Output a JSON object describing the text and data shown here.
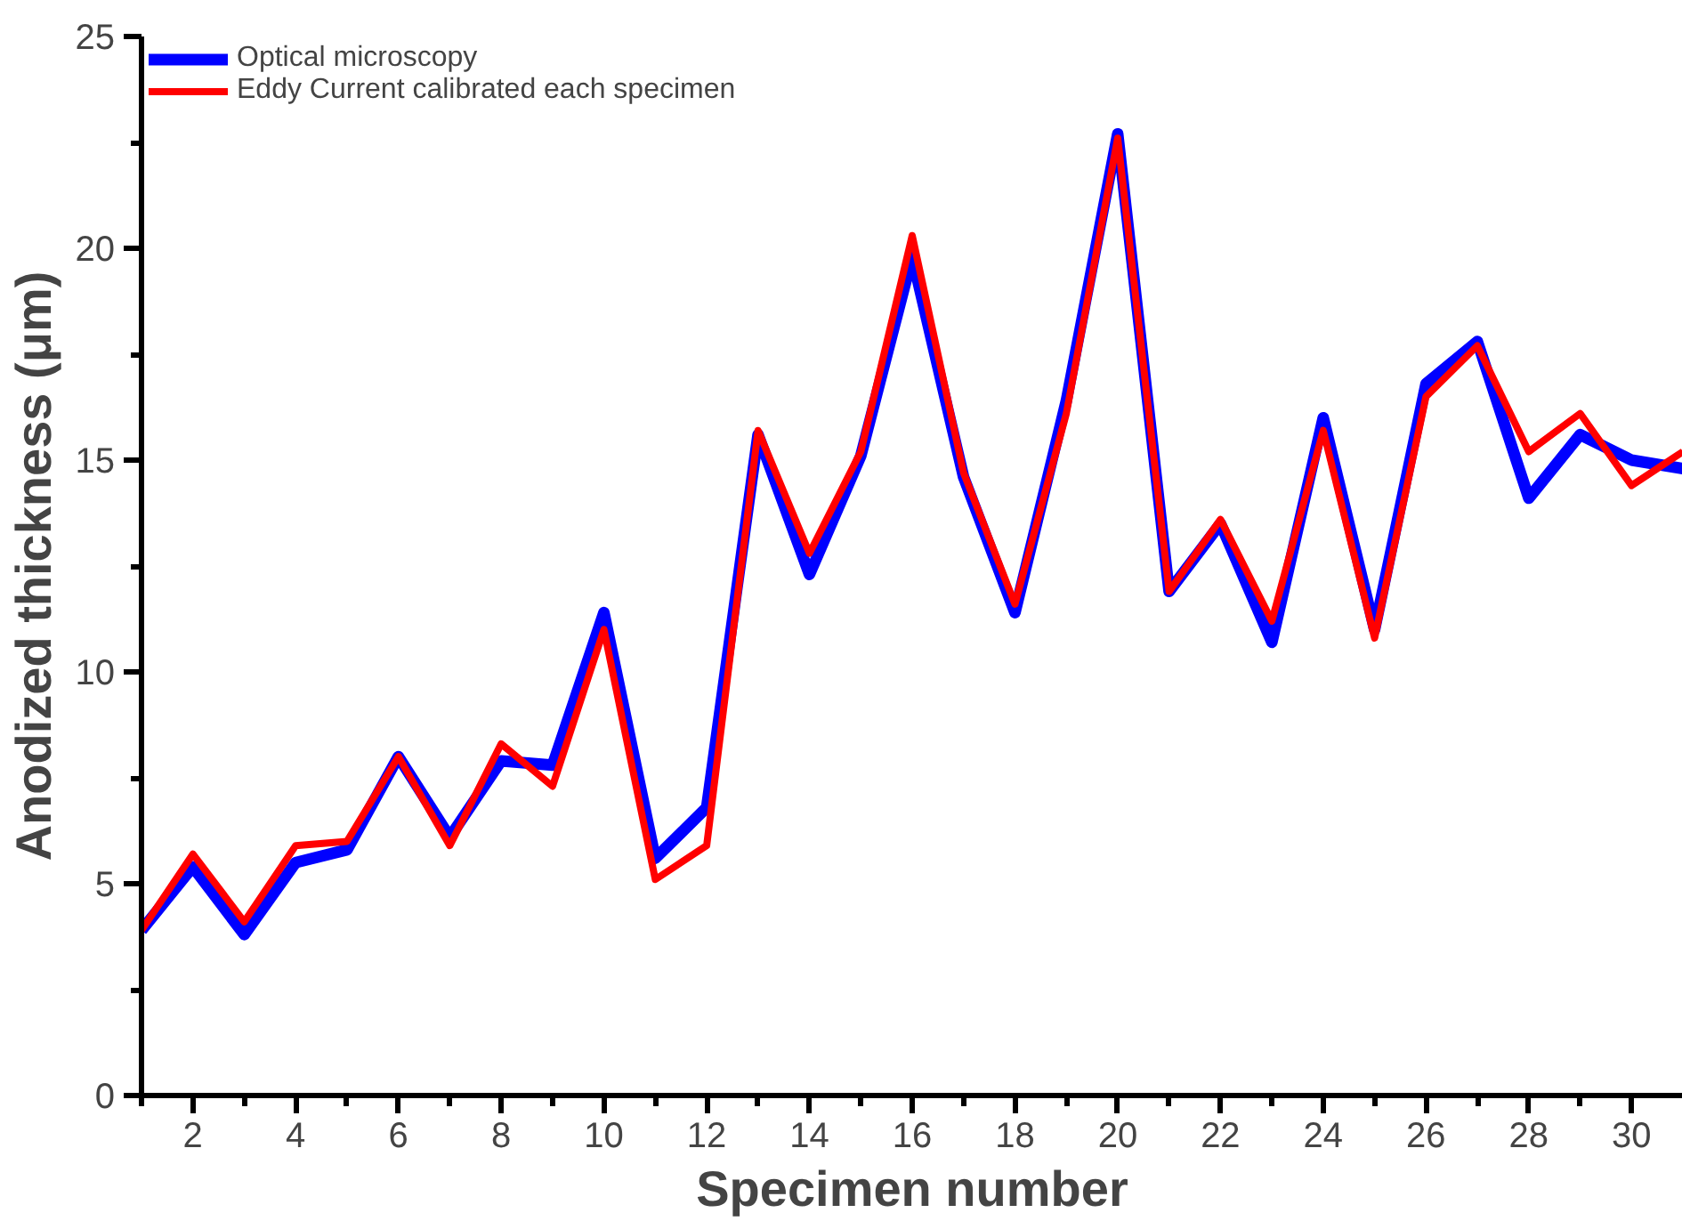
{
  "chart_data": {
    "type": "line",
    "xlabel": "Specimen number",
    "ylabel": "Anodized thickness (μm)",
    "x": [
      1,
      2,
      3,
      4,
      5,
      6,
      7,
      8,
      9,
      10,
      11,
      12,
      13,
      14,
      15,
      16,
      17,
      18,
      19,
      20,
      21,
      22,
      23,
      24,
      25,
      26,
      27,
      28,
      29,
      30,
      31
    ],
    "series": [
      {
        "name": "Optical microscopy",
        "color": "#0000ff",
        "values": [
          3.9,
          5.4,
          3.8,
          5.5,
          5.8,
          8.0,
          6.1,
          7.9,
          7.8,
          11.4,
          5.6,
          6.8,
          15.6,
          12.3,
          15.1,
          19.8,
          14.6,
          11.4,
          16.4,
          22.7,
          11.9,
          13.5,
          10.7,
          16.0,
          11.0,
          16.8,
          17.8,
          14.1,
          15.6,
          15.0,
          14.8
        ]
      },
      {
        "name": "Eddy Current calibrated each specimen",
        "color": "#ff0000",
        "values": [
          3.9,
          5.7,
          4.1,
          5.9,
          6.0,
          8.0,
          5.9,
          8.3,
          7.3,
          11.0,
          5.1,
          5.9,
          15.7,
          12.8,
          15.2,
          20.3,
          14.7,
          11.6,
          16.1,
          22.6,
          11.9,
          13.6,
          11.2,
          15.7,
          10.8,
          16.5,
          17.7,
          15.2,
          16.1,
          14.4,
          15.2
        ]
      }
    ],
    "xlim": [
      1,
      31
    ],
    "ylim": [
      0,
      25
    ],
    "xticks": [
      {
        "value": 1,
        "label": null
      },
      2,
      {
        "value": 3,
        "label": null
      },
      4,
      {
        "value": 5,
        "label": null
      },
      6,
      {
        "value": 7,
        "label": null
      },
      8,
      {
        "value": 9,
        "label": null
      },
      10,
      {
        "value": 11,
        "label": null
      },
      12,
      {
        "value": 13,
        "label": null
      },
      14,
      {
        "value": 15,
        "label": null
      },
      16,
      {
        "value": 17,
        "label": null
      },
      18,
      {
        "value": 19,
        "label": null
      },
      20,
      {
        "value": 21,
        "label": null
      },
      22,
      {
        "value": 23,
        "label": null
      },
      24,
      {
        "value": 25,
        "label": null
      },
      26,
      {
        "value": 27,
        "label": null
      },
      28,
      {
        "value": 29,
        "label": null
      },
      30
    ],
    "yticks": [
      0,
      {
        "value": 2.5,
        "label": null
      },
      5,
      {
        "value": 7.5,
        "label": null
      },
      10,
      {
        "value": 12.5,
        "label": null
      },
      15,
      {
        "value": 17.5,
        "label": null
      },
      20,
      {
        "value": 22.5,
        "label": null
      },
      25
    ],
    "legend": "top left",
    "grid": false,
    "marker": "none",
    "line_style": "solid"
  }
}
